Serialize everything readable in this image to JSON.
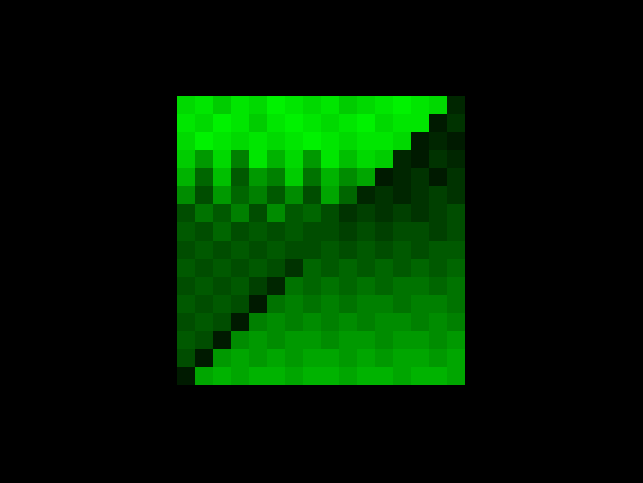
{
  "chart_data": {
    "type": "heatmap",
    "color": "#00ff00",
    "zlim": [
      0,
      1
    ],
    "tick_labels": false,
    "grid": false,
    "z": [
      [
        0.85,
        0.9,
        0.8,
        0.9,
        0.85,
        0.95,
        0.9,
        0.85,
        0.9,
        0.8,
        0.85,
        0.9,
        0.95,
        0.9,
        0.85,
        0.15
      ],
      [
        0.9,
        0.85,
        0.95,
        0.9,
        0.8,
        0.9,
        0.95,
        0.9,
        0.85,
        0.9,
        0.95,
        0.85,
        0.9,
        0.9,
        0.1,
        0.2
      ],
      [
        0.85,
        0.95,
        0.9,
        0.85,
        0.9,
        0.85,
        0.9,
        0.95,
        0.9,
        0.85,
        0.9,
        0.9,
        0.85,
        0.1,
        0.15,
        0.1
      ],
      [
        0.8,
        0.6,
        0.85,
        0.5,
        0.9,
        0.7,
        0.85,
        0.6,
        0.9,
        0.75,
        0.85,
        0.8,
        0.15,
        0.1,
        0.2,
        0.15
      ],
      [
        0.7,
        0.4,
        0.75,
        0.35,
        0.6,
        0.5,
        0.8,
        0.45,
        0.7,
        0.55,
        0.65,
        0.1,
        0.15,
        0.2,
        0.1,
        0.2
      ],
      [
        0.55,
        0.3,
        0.6,
        0.4,
        0.5,
        0.35,
        0.55,
        0.3,
        0.65,
        0.4,
        0.15,
        0.2,
        0.15,
        0.2,
        0.25,
        0.2
      ],
      [
        0.3,
        0.45,
        0.35,
        0.5,
        0.3,
        0.55,
        0.35,
        0.4,
        0.3,
        0.2,
        0.25,
        0.2,
        0.25,
        0.2,
        0.25,
        0.3
      ],
      [
        0.35,
        0.3,
        0.4,
        0.3,
        0.35,
        0.3,
        0.35,
        0.3,
        0.3,
        0.25,
        0.3,
        0.25,
        0.3,
        0.3,
        0.25,
        0.3
      ],
      [
        0.3,
        0.35,
        0.3,
        0.35,
        0.3,
        0.35,
        0.3,
        0.3,
        0.35,
        0.3,
        0.35,
        0.3,
        0.35,
        0.3,
        0.35,
        0.35
      ],
      [
        0.35,
        0.3,
        0.35,
        0.3,
        0.35,
        0.3,
        0.2,
        0.4,
        0.35,
        0.4,
        0.35,
        0.4,
        0.35,
        0.4,
        0.35,
        0.4
      ],
      [
        0.3,
        0.35,
        0.3,
        0.35,
        0.25,
        0.15,
        0.45,
        0.4,
        0.45,
        0.4,
        0.45,
        0.4,
        0.45,
        0.45,
        0.4,
        0.45
      ],
      [
        0.35,
        0.3,
        0.35,
        0.3,
        0.1,
        0.45,
        0.5,
        0.45,
        0.5,
        0.45,
        0.5,
        0.5,
        0.45,
        0.5,
        0.5,
        0.45
      ],
      [
        0.3,
        0.35,
        0.3,
        0.1,
        0.5,
        0.55,
        0.5,
        0.55,
        0.5,
        0.55,
        0.5,
        0.55,
        0.55,
        0.5,
        0.55,
        0.5
      ],
      [
        0.35,
        0.3,
        0.1,
        0.55,
        0.6,
        0.55,
        0.6,
        0.6,
        0.55,
        0.6,
        0.6,
        0.55,
        0.6,
        0.6,
        0.55,
        0.6
      ],
      [
        0.3,
        0.1,
        0.6,
        0.65,
        0.6,
        0.65,
        0.6,
        0.65,
        0.65,
        0.6,
        0.65,
        0.6,
        0.65,
        0.65,
        0.6,
        0.65
      ],
      [
        0.1,
        0.65,
        0.7,
        0.65,
        0.7,
        0.7,
        0.65,
        0.7,
        0.7,
        0.65,
        0.7,
        0.7,
        0.65,
        0.7,
        0.7,
        0.65
      ]
    ]
  }
}
